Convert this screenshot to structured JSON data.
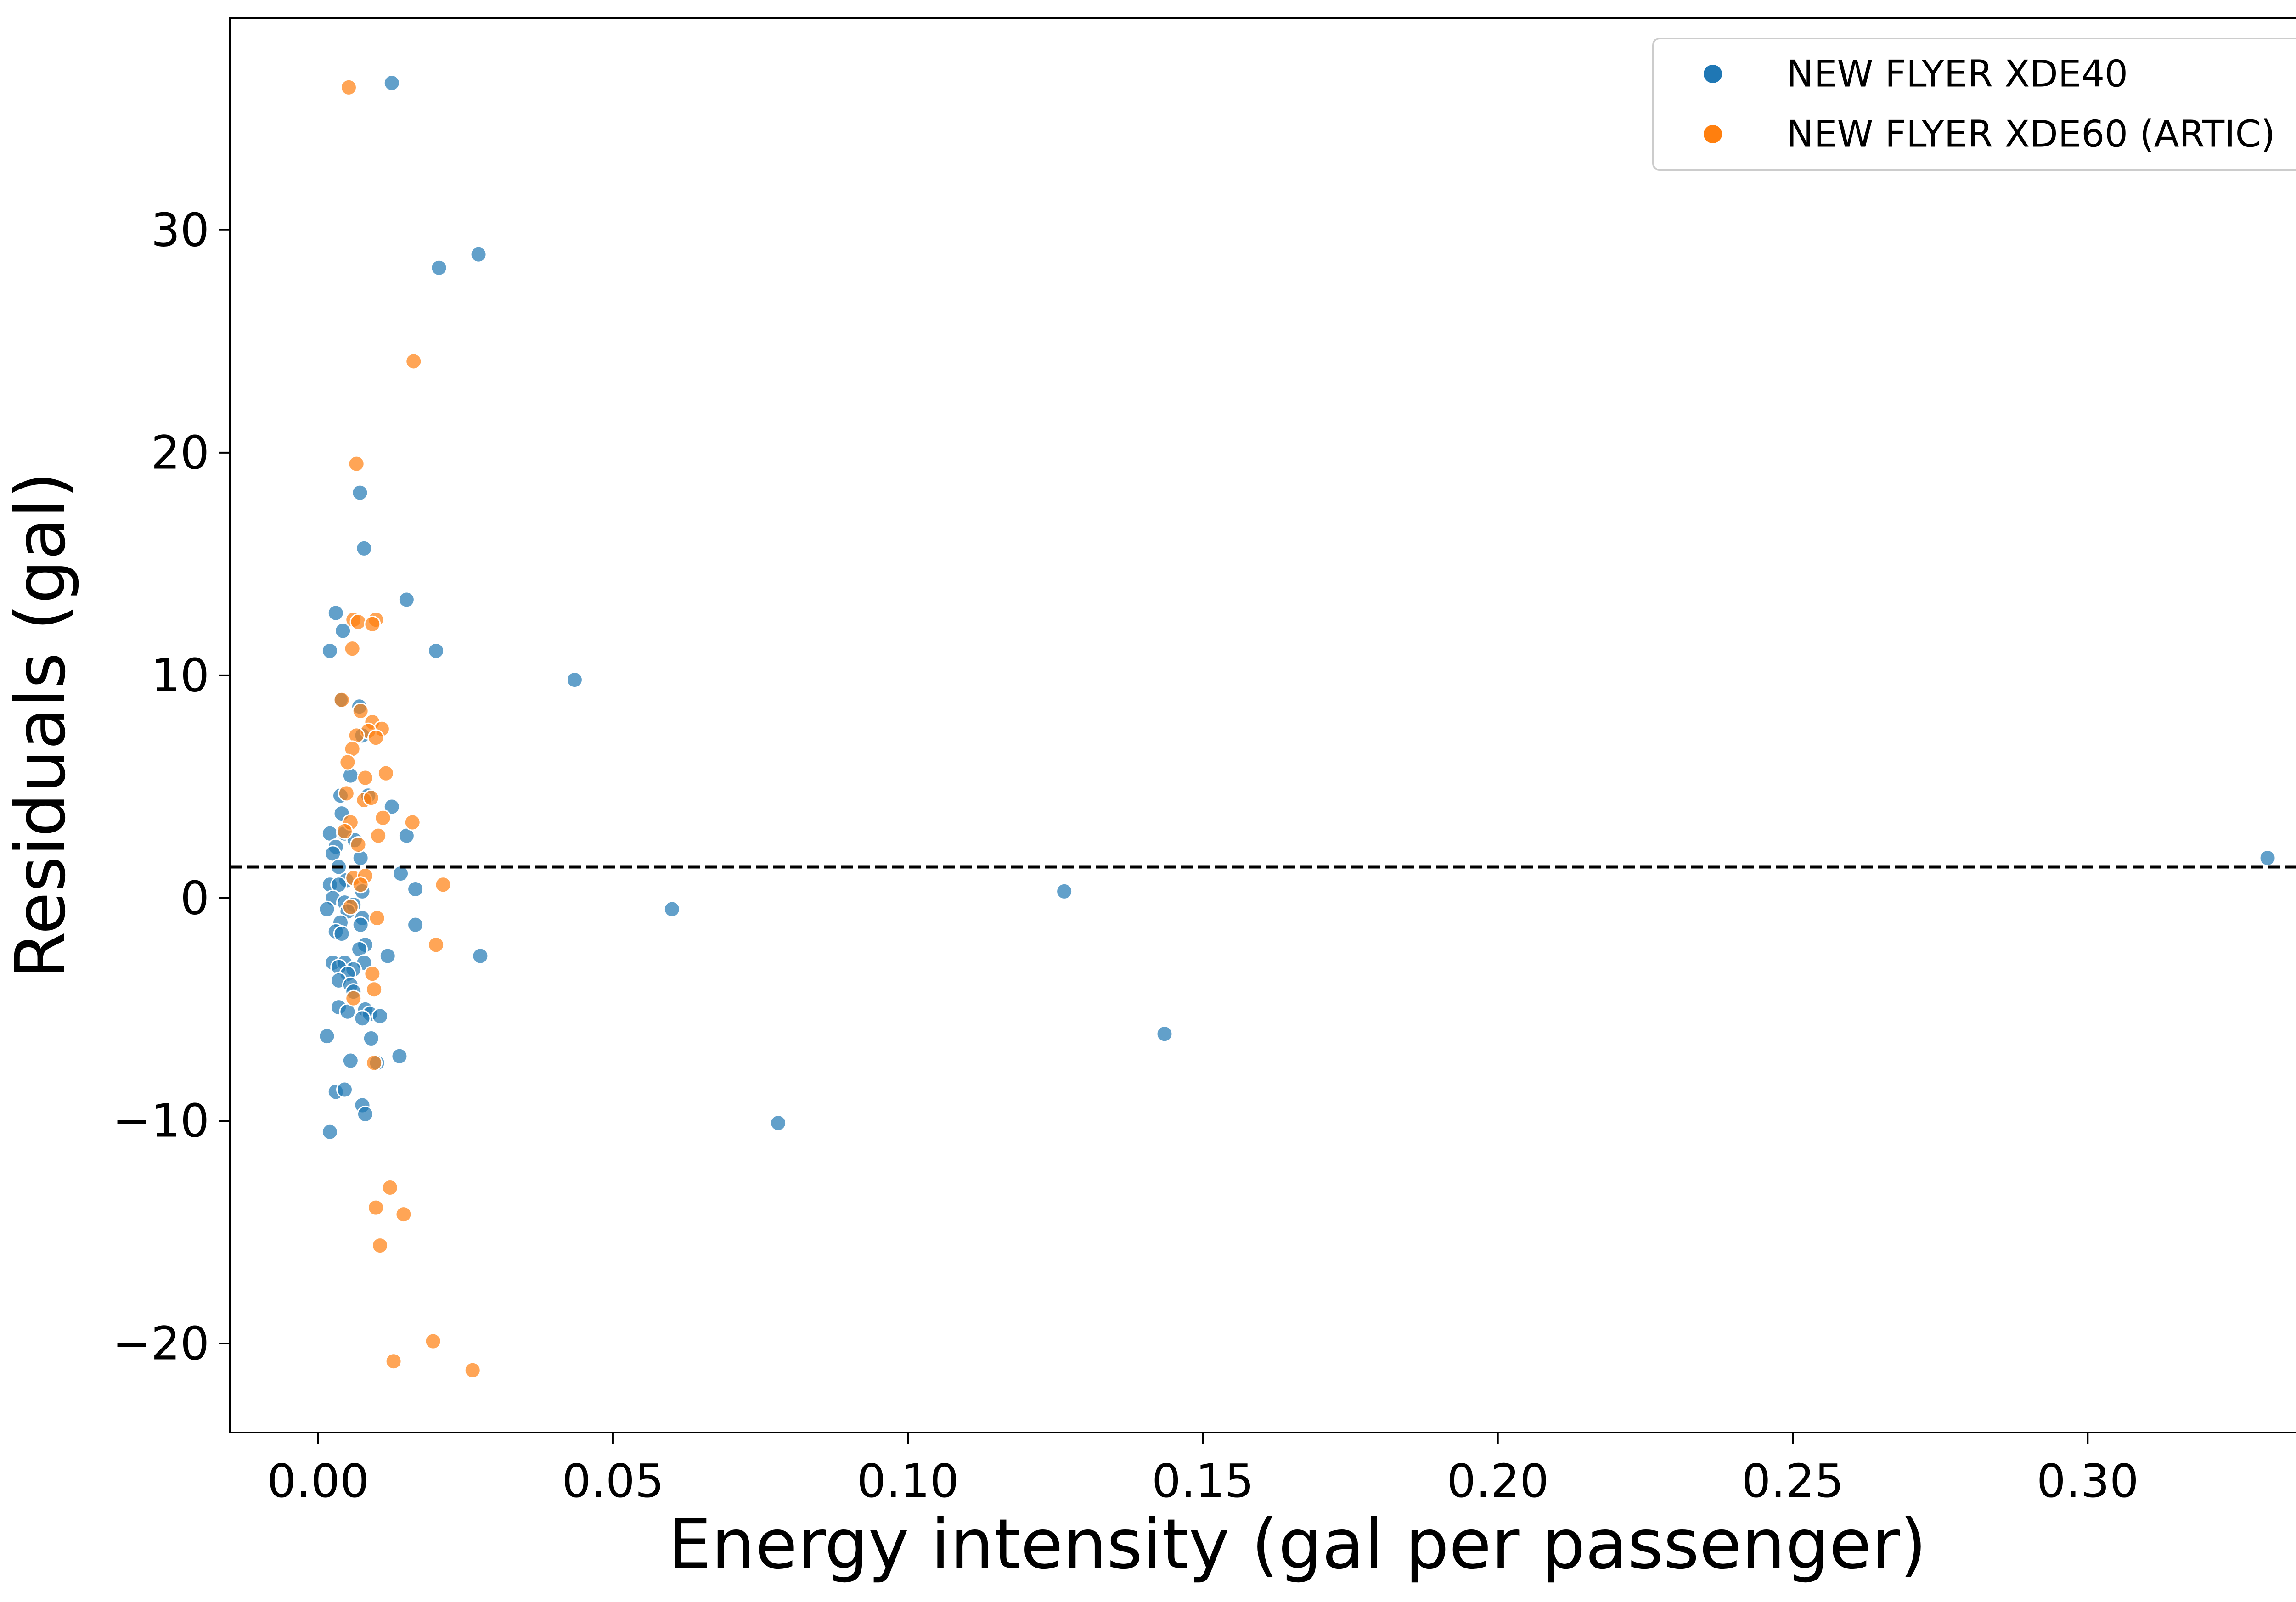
{
  "chart_data": {
    "type": "scatter",
    "title": "",
    "xlabel": "Energy intensity (gal per passenger)",
    "ylabel": "Residuals (gal)",
    "xlim": [
      -0.015,
      0.347
    ],
    "ylim": [
      -24.0,
      39.5
    ],
    "xticks": [
      0.0,
      0.05,
      0.1,
      0.15,
      0.2,
      0.25,
      0.3
    ],
    "xtick_labels": [
      "0.00",
      "0.05",
      "0.10",
      "0.15",
      "0.20",
      "0.25",
      "0.30"
    ],
    "yticks": [
      -20,
      -10,
      0,
      10,
      20,
      30
    ],
    "ytick_labels": [
      "−20",
      "−10",
      "0",
      "10",
      "20",
      "30"
    ],
    "grid": false,
    "legend_position": "top-right",
    "reference_line": {
      "y": 1.4,
      "style": "dashed",
      "color": "#000000"
    },
    "series": [
      {
        "name": "NEW FLYER XDE40",
        "color": "#1f77b4",
        "points": [
          [
            0.0125,
            36.6
          ],
          [
            0.0205,
            28.3
          ],
          [
            0.0272,
            28.9
          ],
          [
            0.0071,
            18.2
          ],
          [
            0.0078,
            15.7
          ],
          [
            0.015,
            13.4
          ],
          [
            0.003,
            12.8
          ],
          [
            0.0042,
            12.0
          ],
          [
            0.002,
            11.1
          ],
          [
            0.02,
            11.1
          ],
          [
            0.0435,
            9.8
          ],
          [
            0.0038,
            8.9
          ],
          [
            0.007,
            8.6
          ],
          [
            0.0075,
            7.3
          ],
          [
            0.0055,
            5.5
          ],
          [
            0.0038,
            4.6
          ],
          [
            0.0085,
            4.6
          ],
          [
            0.0125,
            4.1
          ],
          [
            0.004,
            3.8
          ],
          [
            0.002,
            2.9
          ],
          [
            0.0045,
            2.9
          ],
          [
            0.0062,
            2.6
          ],
          [
            0.003,
            2.3
          ],
          [
            0.015,
            2.8
          ],
          [
            0.0025,
            2.0
          ],
          [
            0.0072,
            1.8
          ],
          [
            0.0035,
            1.4
          ],
          [
            0.0048,
            0.8
          ],
          [
            0.014,
            1.1
          ],
          [
            0.002,
            0.6
          ],
          [
            0.0035,
            0.6
          ],
          [
            0.0165,
            0.4
          ],
          [
            0.0075,
            0.3
          ],
          [
            0.0025,
            0.0
          ],
          [
            0.0045,
            -0.2
          ],
          [
            0.006,
            -0.3
          ],
          [
            0.0015,
            -0.5
          ],
          [
            0.005,
            -0.6
          ],
          [
            0.06,
            -0.5
          ],
          [
            0.1265,
            0.3
          ],
          [
            0.3305,
            1.8
          ],
          [
            0.0075,
            -0.9
          ],
          [
            0.0038,
            -1.1
          ],
          [
            0.0072,
            -1.2
          ],
          [
            0.0165,
            -1.2
          ],
          [
            0.003,
            -1.5
          ],
          [
            0.004,
            -1.6
          ],
          [
            0.008,
            -2.1
          ],
          [
            0.007,
            -2.3
          ],
          [
            0.0118,
            -2.6
          ],
          [
            0.0275,
            -2.6
          ],
          [
            0.0025,
            -2.9
          ],
          [
            0.0045,
            -2.9
          ],
          [
            0.0078,
            -2.9
          ],
          [
            0.0035,
            -3.1
          ],
          [
            0.006,
            -3.2
          ],
          [
            0.005,
            -3.4
          ],
          [
            0.0035,
            -3.7
          ],
          [
            0.0055,
            -3.9
          ],
          [
            0.006,
            -4.2
          ],
          [
            0.0035,
            -4.9
          ],
          [
            0.008,
            -5.0
          ],
          [
            0.005,
            -5.1
          ],
          [
            0.0088,
            -5.2
          ],
          [
            0.0105,
            -5.3
          ],
          [
            0.0075,
            -5.4
          ],
          [
            0.009,
            -6.3
          ],
          [
            0.1435,
            -6.1
          ],
          [
            0.0015,
            -6.2
          ],
          [
            0.0138,
            -7.1
          ],
          [
            0.0055,
            -7.3
          ],
          [
            0.01,
            -7.4
          ],
          [
            0.003,
            -8.7
          ],
          [
            0.0045,
            -8.6
          ],
          [
            0.0075,
            -9.3
          ],
          [
            0.008,
            -9.7
          ],
          [
            0.002,
            -10.5
          ],
          [
            0.078,
            -10.1
          ]
        ]
      },
      {
        "name": "NEW FLYER XDE60 (ARTIC)",
        "color": "#ff7f0e",
        "points": [
          [
            0.0052,
            36.4
          ],
          [
            0.0162,
            24.1
          ],
          [
            0.0065,
            19.5
          ],
          [
            0.006,
            12.5
          ],
          [
            0.0068,
            12.4
          ],
          [
            0.0098,
            12.5
          ],
          [
            0.0092,
            12.3
          ],
          [
            0.0058,
            11.2
          ],
          [
            0.004,
            8.9
          ],
          [
            0.0072,
            8.4
          ],
          [
            0.0092,
            7.9
          ],
          [
            0.0108,
            7.6
          ],
          [
            0.0085,
            7.5
          ],
          [
            0.0098,
            7.2
          ],
          [
            0.0065,
            7.3
          ],
          [
            0.0058,
            6.7
          ],
          [
            0.005,
            6.1
          ],
          [
            0.0115,
            5.6
          ],
          [
            0.008,
            5.4
          ],
          [
            0.0048,
            4.7
          ],
          [
            0.0078,
            4.4
          ],
          [
            0.009,
            4.5
          ],
          [
            0.011,
            3.6
          ],
          [
            0.0055,
            3.4
          ],
          [
            0.016,
            3.4
          ],
          [
            0.0045,
            3.0
          ],
          [
            0.0068,
            2.4
          ],
          [
            0.0102,
            2.8
          ],
          [
            0.006,
            0.9
          ],
          [
            0.008,
            1.0
          ],
          [
            0.0072,
            0.6
          ],
          [
            0.0212,
            0.6
          ],
          [
            0.0055,
            -0.4
          ],
          [
            0.01,
            -0.9
          ],
          [
            0.02,
            -2.1
          ],
          [
            0.0092,
            -3.4
          ],
          [
            0.0095,
            -4.1
          ],
          [
            0.006,
            -4.5
          ],
          [
            0.0095,
            -7.4
          ],
          [
            0.0122,
            -13.0
          ],
          [
            0.0098,
            -13.9
          ],
          [
            0.0145,
            -14.2
          ],
          [
            0.0105,
            -15.6
          ],
          [
            0.0195,
            -19.9
          ],
          [
            0.0128,
            -20.8
          ],
          [
            0.0262,
            -21.2
          ]
        ]
      }
    ]
  }
}
